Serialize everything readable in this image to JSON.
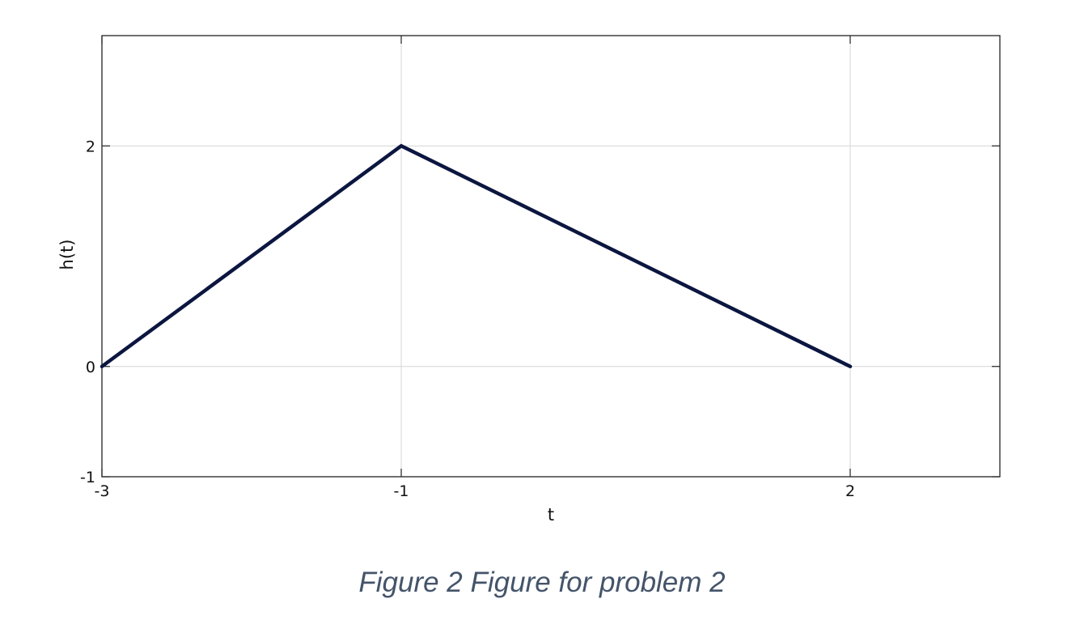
{
  "caption": "Figure 2 Figure for problem 2",
  "colors": {
    "line": "#0b1640",
    "grid": "#d6d6d6",
    "frame": "#222222"
  },
  "chart_data": {
    "type": "line",
    "title": "",
    "xlabel": "t",
    "ylabel": "h(t)",
    "xlim": [
      -3,
      3
    ],
    "ylim": [
      -1,
      3
    ],
    "xticks": [
      -3,
      -1,
      2
    ],
    "xtick_labels": [
      "-3",
      "-1",
      "2"
    ],
    "yticks": [
      -1,
      0,
      2
    ],
    "ytick_labels": [
      "-1",
      "0",
      "2"
    ],
    "grid": true,
    "legend": "none",
    "series": [
      {
        "x": [
          -3,
          -1,
          2
        ],
        "y": [
          0,
          2,
          0
        ]
      }
    ]
  }
}
